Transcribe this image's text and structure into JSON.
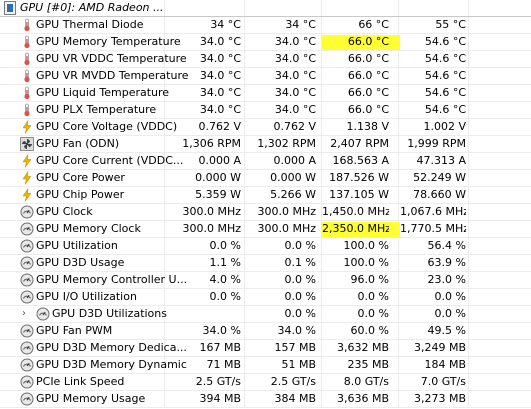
{
  "group_header": "GPU [#0]: AMD Radeon ...",
  "rows": [
    {
      "icon": "thermometer-icon",
      "label": "GPU Thermal Diode",
      "values": [
        "34 °C",
        "34 °C",
        "66 °C",
        "55 °C"
      ]
    },
    {
      "icon": "thermometer-icon",
      "label": "GPU Memory Temperature",
      "values": [
        "34.0 °C",
        "34.0 °C",
        "66.0 °C",
        "54.6 °C"
      ],
      "highlight": 2
    },
    {
      "icon": "thermometer-icon",
      "label": "GPU VR VDDC Temperature",
      "values": [
        "34.0 °C",
        "34.0 °C",
        "66.0 °C",
        "54.6 °C"
      ]
    },
    {
      "icon": "thermometer-icon",
      "label": "GPU VR MVDD Temperature",
      "values": [
        "34.0 °C",
        "34.0 °C",
        "66.0 °C",
        "54.6 °C"
      ]
    },
    {
      "icon": "thermometer-icon",
      "label": "GPU Liquid Temperature",
      "values": [
        "34.0 °C",
        "34.0 °C",
        "66.0 °C",
        "54.6 °C"
      ]
    },
    {
      "icon": "thermometer-icon",
      "label": "GPU PLX Temperature",
      "values": [
        "34.0 °C",
        "34.0 °C",
        "66.0 °C",
        "54.6 °C"
      ]
    },
    {
      "icon": "lightning-icon",
      "label": "GPU Core Voltage (VDDC)",
      "values": [
        "0.762 V",
        "0.762 V",
        "1.138 V",
        "1.002 V"
      ]
    },
    {
      "icon": "fan-icon",
      "label": "GPU Fan (ODN)",
      "values": [
        "1,306 RPM",
        "1,302 RPM",
        "2,407 RPM",
        "1,999 RPM"
      ]
    },
    {
      "icon": "lightning-icon",
      "label": "GPU Core Current (VDDC...",
      "values": [
        "0.000 A",
        "0.000 A",
        "168.563 A",
        "47.313 A"
      ]
    },
    {
      "icon": "lightning-icon",
      "label": "GPU Core Power",
      "values": [
        "0.000 W",
        "0.000 W",
        "187.526 W",
        "52.249 W"
      ]
    },
    {
      "icon": "lightning-icon",
      "label": "GPU Chip Power",
      "values": [
        "5.359 W",
        "5.266 W",
        "137.105 W",
        "78.660 W"
      ]
    },
    {
      "icon": "gauge-icon",
      "label": "GPU Clock",
      "values": [
        "300.0 MHz",
        "300.0 MHz",
        "1,450.0 MHz",
        "1,067.6 MHz"
      ]
    },
    {
      "icon": "gauge-icon",
      "label": "GPU Memory Clock",
      "values": [
        "300.0 MHz",
        "300.0 MHz",
        "2,350.0 MHz",
        "1,770.5 MHz"
      ],
      "highlight": 2
    },
    {
      "icon": "gauge-icon",
      "label": "GPU Utilization",
      "values": [
        "0.0 %",
        "0.0 %",
        "100.0 %",
        "56.4 %"
      ]
    },
    {
      "icon": "gauge-icon",
      "label": "GPU D3D Usage",
      "values": [
        "1.1 %",
        "0.1 %",
        "100.0 %",
        "63.9 %"
      ]
    },
    {
      "icon": "gauge-icon",
      "label": "GPU Memory Controller U...",
      "values": [
        "4.0 %",
        "0.0 %",
        "96.0 %",
        "23.0 %"
      ]
    },
    {
      "icon": "gauge-icon",
      "label": "GPU I/O Utilization",
      "values": [
        "0.0 %",
        "0.0 %",
        "0.0 %",
        "0.0 %"
      ]
    },
    {
      "icon": "gauge-icon",
      "label": "GPU D3D Utilizations",
      "values": [
        "",
        "0.0 %",
        "0.0 %",
        "0.0 %"
      ],
      "expandable": true
    },
    {
      "icon": "gauge-icon",
      "label": "GPU Fan PWM",
      "values": [
        "34.0 %",
        "34.0 %",
        "60.0 %",
        "49.5 %"
      ]
    },
    {
      "icon": "gauge-icon",
      "label": "GPU D3D Memory Dedica...",
      "values": [
        "167 MB",
        "157 MB",
        "3,632 MB",
        "3,249 MB"
      ]
    },
    {
      "icon": "gauge-icon",
      "label": "GPU D3D Memory Dynamic",
      "values": [
        "71 MB",
        "51 MB",
        "235 MB",
        "184 MB"
      ]
    },
    {
      "icon": "gauge-icon",
      "label": "PCIe Link Speed",
      "values": [
        "2.5 GT/s",
        "2.5 GT/s",
        "8.0 GT/s",
        "7.0 GT/s"
      ]
    },
    {
      "icon": "gauge-icon",
      "label": "GPU Memory Usage",
      "values": [
        "394 MB",
        "384 MB",
        "3,636 MB",
        "3,273 MB"
      ]
    }
  ],
  "colors": {
    "highlight": "#ffff33",
    "thermometer": "#d9534f",
    "lightning": "#f0b400",
    "gauge": "#6b6b6b",
    "fan": "#444444"
  }
}
